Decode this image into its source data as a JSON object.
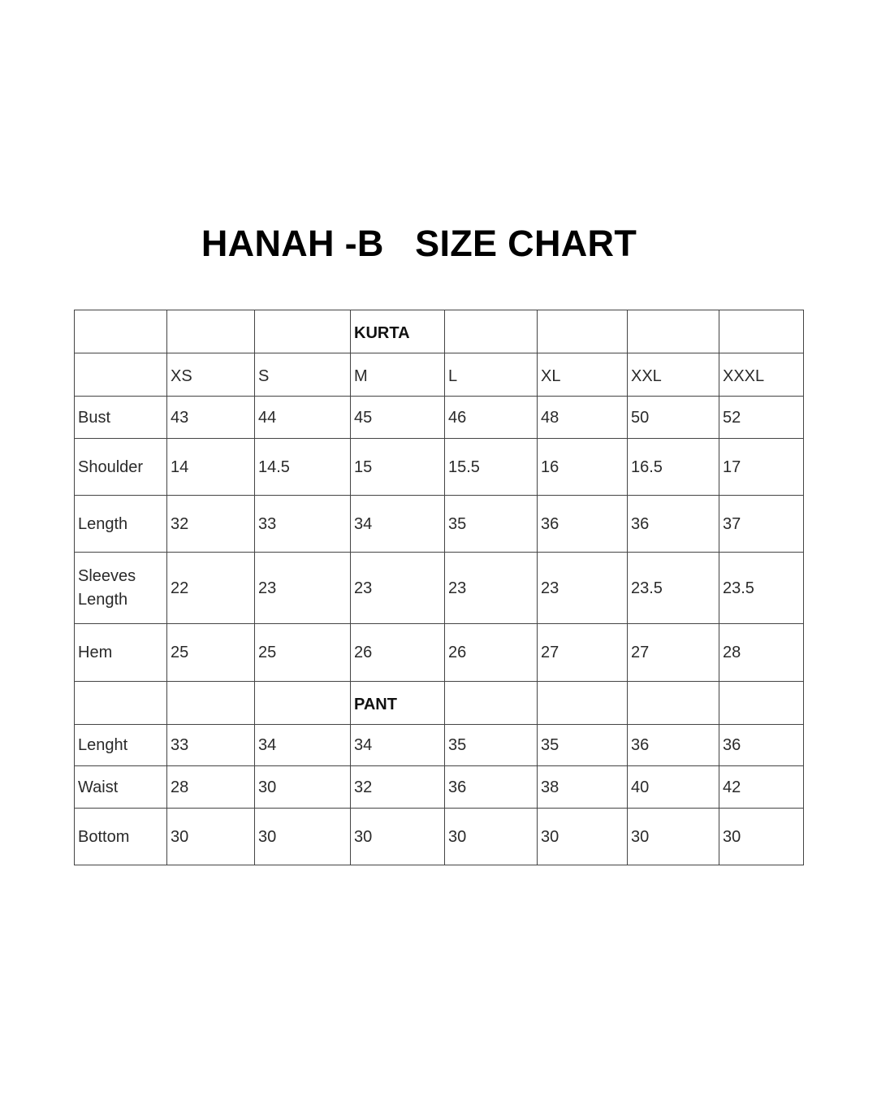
{
  "title": "HANAH -B   SIZE CHART",
  "table": {
    "rows": [
      {
        "type": "section",
        "cells": [
          "",
          "",
          "",
          "KURTA",
          "",
          "",
          "",
          ""
        ]
      },
      {
        "type": "header",
        "cells": [
          "",
          "XS",
          "S",
          "M",
          "L",
          "XL",
          "XXL",
          "XXXL"
        ]
      },
      {
        "type": "data",
        "cells": [
          "Bust",
          "43",
          "44",
          "45",
          "46",
          "48",
          "50",
          "52"
        ]
      },
      {
        "type": "data",
        "cells": [
          "Shoulder",
          "14",
          "14.5",
          "15",
          "15.5",
          "16",
          "16.5",
          "17"
        ]
      },
      {
        "type": "data",
        "cells": [
          "Length",
          "32",
          "33",
          "34",
          "35",
          "36",
          "36",
          "37"
        ]
      },
      {
        "type": "data",
        "cells": [
          "Sleeves Length",
          "22",
          "23",
          "23",
          "23",
          "23",
          "23.5",
          "23.5"
        ]
      },
      {
        "type": "data",
        "cells": [
          "Hem",
          "25",
          "25",
          "26",
          "26",
          "27",
          "27",
          "28"
        ]
      },
      {
        "type": "section",
        "cells": [
          "",
          "",
          "",
          "PANT",
          "",
          "",
          "",
          ""
        ]
      },
      {
        "type": "data",
        "cells": [
          "Lenght",
          "33",
          "34",
          "34",
          "35",
          "35",
          "36",
          "36"
        ]
      },
      {
        "type": "data",
        "cells": [
          "Waist",
          "28",
          "30",
          "32",
          "36",
          "38",
          "40",
          "42"
        ]
      },
      {
        "type": "data",
        "cells": [
          "Bottom",
          "30",
          "30",
          "30",
          "30",
          "30",
          "30",
          "30"
        ]
      }
    ]
  }
}
